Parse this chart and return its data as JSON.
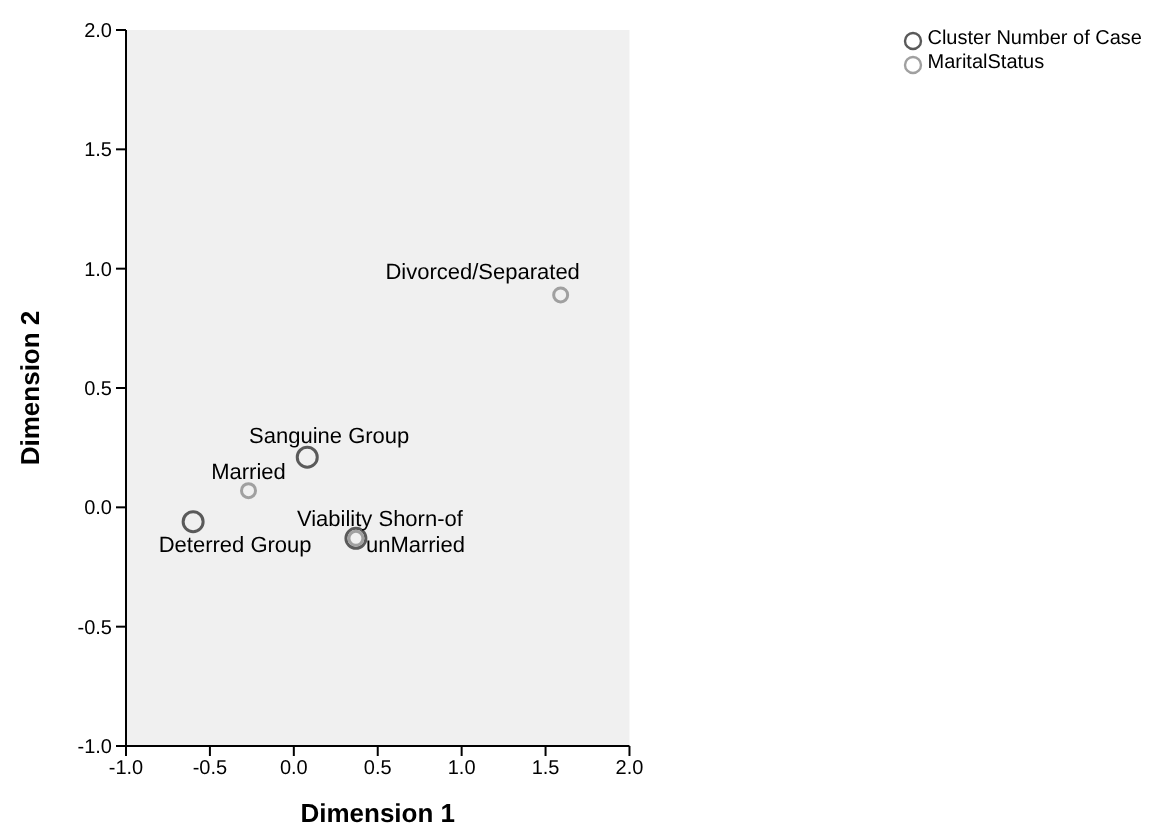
{
  "chart_data": {
    "type": "scatter",
    "xlabel": "Dimension 1",
    "ylabel": "Dimension 2",
    "marker": "circle",
    "legend": "top right",
    "grid": false,
    "xlim": [
      -1,
      2
    ],
    "xticks": [
      {
        "value": -1,
        "label": "-1.0"
      },
      {
        "value": -0.5,
        "label": "-0.5"
      },
      {
        "value": 0,
        "label": "0.0"
      },
      {
        "value": 0.5,
        "label": "0.5"
      },
      {
        "value": 1,
        "label": "1.0"
      },
      {
        "value": 1.5,
        "label": "1.5"
      },
      {
        "value": 2,
        "label": "2.0"
      }
    ],
    "ylim": [
      -1,
      2
    ],
    "yticks": [
      {
        "value": -1,
        "label": "-1.0"
      },
      {
        "value": -0.5,
        "label": "-0.5"
      },
      {
        "value": 0,
        "label": "0.0"
      },
      {
        "value": 0.5,
        "label": "0.5"
      },
      {
        "value": 1,
        "label": "1.0"
      },
      {
        "value": 1.5,
        "label": "1.5"
      },
      {
        "value": 2,
        "label": "2.0"
      }
    ],
    "series": [
      {
        "name": "Cluster Number of Case",
        "color": "#5a5a5a",
        "x": [
          -0.6,
          0.08,
          0.37
        ],
        "values": [
          -0.06,
          0.21,
          -0.13
        ]
      },
      {
        "name": "MaritalStatus",
        "color": "#a0a0a0",
        "x": [
          -0.27,
          0.37,
          1.59
        ],
        "values": [
          0.07,
          -0.13,
          0.89
        ]
      }
    ],
    "annotations": [
      {
        "text": "Sanguine Group",
        "x": 0.08,
        "y": 0.21
      },
      {
        "text": "Married",
        "x": -0.27,
        "y": 0.07
      },
      {
        "text": "Deterred Group",
        "x": -0.6,
        "y": -0.06
      },
      {
        "text": "Viability Shorn-of",
        "x": 0.37,
        "y": -0.13
      },
      {
        "text": "unMarried",
        "x": 0.37,
        "y": -0.13
      },
      {
        "text": "Divorced/Separated",
        "x": 1.59,
        "y": 0.89
      }
    ]
  }
}
